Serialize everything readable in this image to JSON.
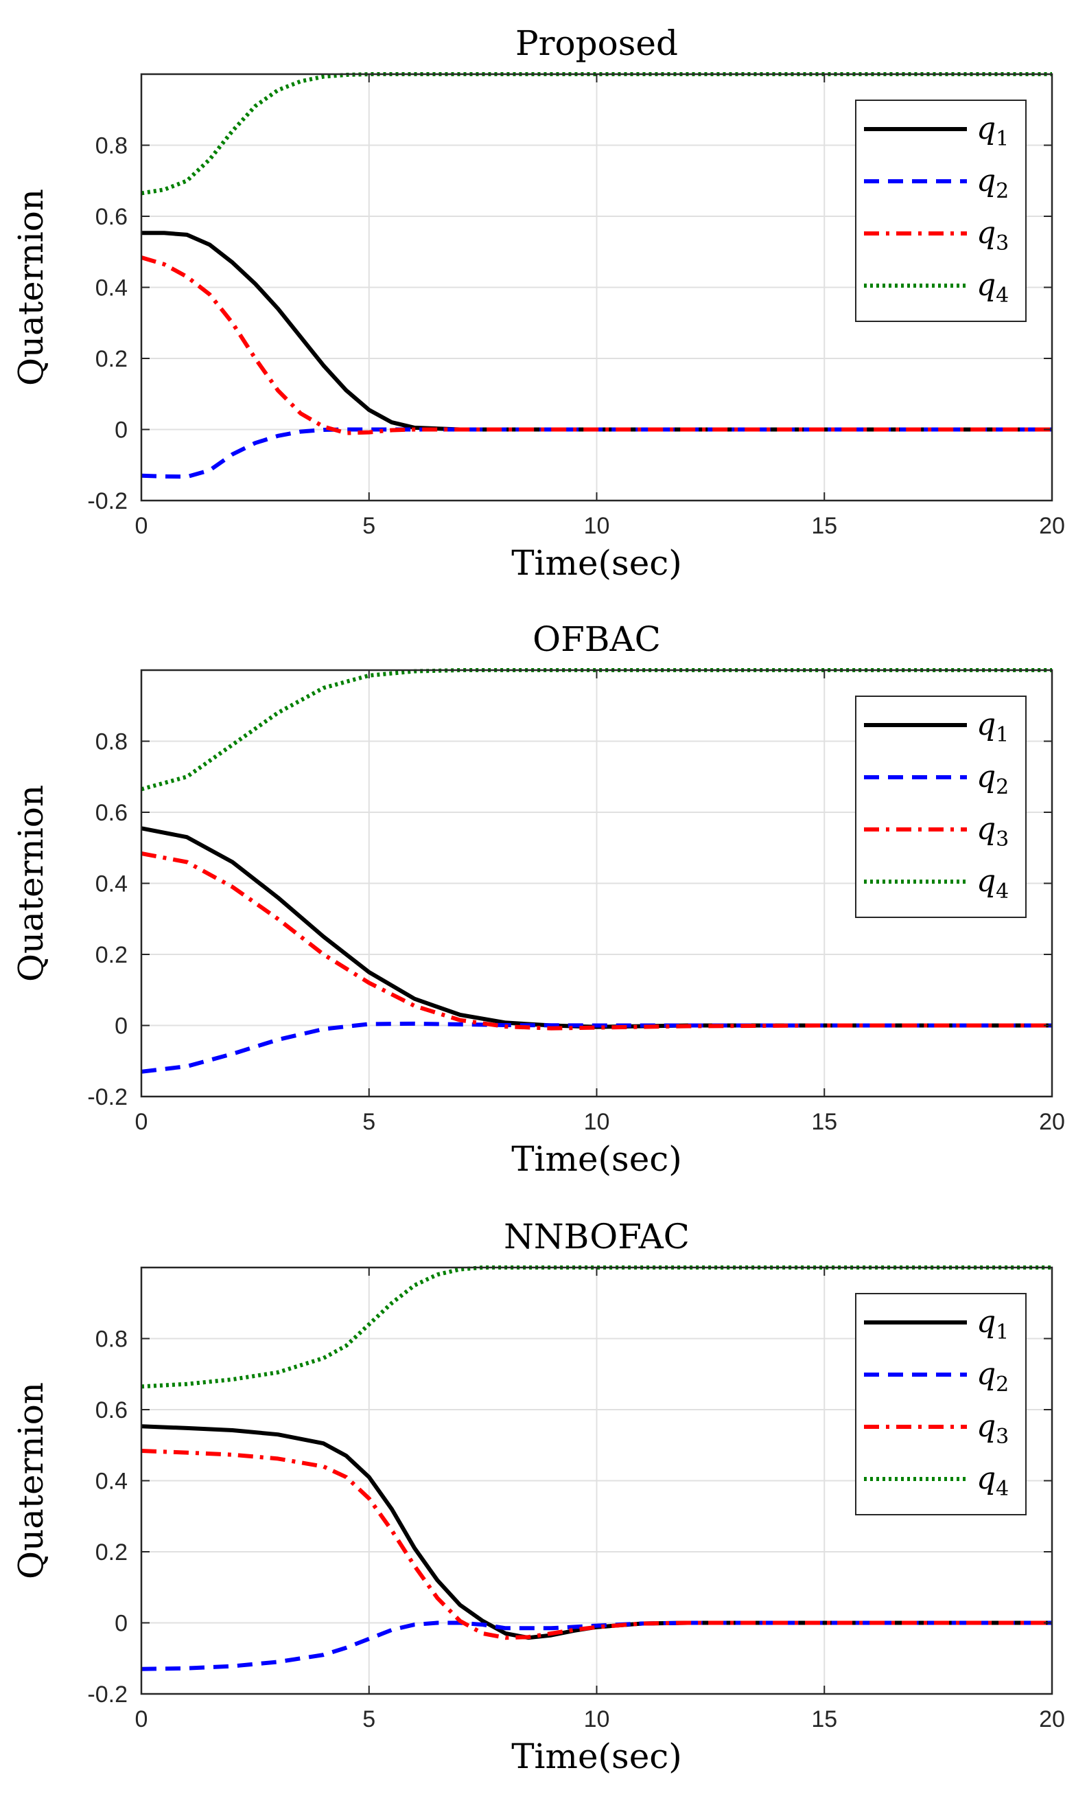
{
  "chart_data": [
    {
      "type": "line",
      "title": "Proposed",
      "xlabel": "Time(sec)",
      "ylabel": "Quaternion",
      "xlim": [
        0,
        20
      ],
      "ylim": [
        -0.2,
        1.0
      ],
      "xticks": [
        "0",
        "5",
        "10",
        "15",
        "20"
      ],
      "yticks": [
        "-0.2",
        "0",
        "0.2",
        "0.4",
        "0.6",
        "0.8"
      ],
      "grid": true,
      "legend_position": "top-right",
      "series": [
        {
          "name": "q",
          "sub": "1",
          "color": "#000000",
          "style": "solid",
          "x": [
            0,
            0.5,
            1,
            1.5,
            2,
            2.5,
            3,
            3.5,
            4,
            4.5,
            5,
            5.5,
            6,
            7,
            8,
            10,
            15,
            20
          ],
          "y": [
            0.553,
            0.553,
            0.548,
            0.52,
            0.47,
            0.41,
            0.34,
            0.26,
            0.18,
            0.11,
            0.055,
            0.02,
            0.005,
            0,
            0,
            0,
            0,
            0
          ]
        },
        {
          "name": "q",
          "sub": "2",
          "color": "#0000ff",
          "style": "dashed",
          "x": [
            0,
            0.5,
            1,
            1.5,
            2,
            2.5,
            3,
            3.5,
            4,
            4.5,
            5,
            6,
            8,
            10,
            15,
            20
          ],
          "y": [
            -0.13,
            -0.132,
            -0.133,
            -0.115,
            -0.07,
            -0.038,
            -0.018,
            -0.006,
            -0.001,
            0,
            0,
            0,
            0,
            0,
            0,
            0
          ]
        },
        {
          "name": "q",
          "sub": "3",
          "color": "#ff0000",
          "style": "dashdot",
          "x": [
            0,
            0.5,
            1,
            1.5,
            2,
            2.5,
            3,
            3.5,
            4,
            4.5,
            5,
            5.5,
            6,
            7,
            10,
            15,
            20
          ],
          "y": [
            0.484,
            0.465,
            0.43,
            0.38,
            0.3,
            0.2,
            0.11,
            0.045,
            0.008,
            -0.01,
            -0.008,
            -0.002,
            0,
            0,
            0,
            0,
            0
          ]
        },
        {
          "name": "q",
          "sub": "4",
          "color": "#008000",
          "style": "dotted",
          "x": [
            0,
            0.5,
            1,
            1.5,
            2,
            2.5,
            3,
            3.5,
            4,
            4.5,
            5,
            6,
            8,
            10,
            15,
            20
          ],
          "y": [
            0.665,
            0.675,
            0.7,
            0.76,
            0.84,
            0.91,
            0.955,
            0.98,
            0.993,
            0.998,
            1.0,
            1.0,
            1.0,
            1.0,
            1.0,
            1.0
          ]
        }
      ]
    },
    {
      "type": "line",
      "title": "OFBAC",
      "xlabel": "Time(sec)",
      "ylabel": "Quaternion",
      "xlim": [
        0,
        20
      ],
      "ylim": [
        -0.2,
        1.0
      ],
      "xticks": [
        "0",
        "5",
        "10",
        "15",
        "20"
      ],
      "yticks": [
        "-0.2",
        "0",
        "0.2",
        "0.4",
        "0.6",
        "0.8"
      ],
      "grid": true,
      "legend_position": "top-right",
      "series": [
        {
          "name": "q",
          "sub": "1",
          "color": "#000000",
          "style": "solid",
          "x": [
            0,
            1,
            2,
            3,
            4,
            5,
            6,
            7,
            8,
            9,
            10,
            12,
            15,
            20
          ],
          "y": [
            0.555,
            0.53,
            0.46,
            0.36,
            0.25,
            0.15,
            0.075,
            0.03,
            0.008,
            0,
            -0.004,
            0,
            0,
            0
          ]
        },
        {
          "name": "q",
          "sub": "2",
          "color": "#0000ff",
          "style": "dashed",
          "x": [
            0,
            1,
            2,
            3,
            4,
            5,
            6,
            7,
            8,
            10,
            12,
            15,
            20
          ],
          "y": [
            -0.13,
            -0.115,
            -0.08,
            -0.04,
            -0.01,
            0.004,
            0.005,
            0.003,
            0.001,
            0,
            0,
            0,
            0
          ]
        },
        {
          "name": "q",
          "sub": "3",
          "color": "#ff0000",
          "style": "dashdot",
          "x": [
            0,
            1,
            2,
            3,
            4,
            5,
            6,
            7,
            8,
            9,
            10,
            12,
            15,
            20
          ],
          "y": [
            0.484,
            0.46,
            0.39,
            0.3,
            0.2,
            0.12,
            0.055,
            0.015,
            -0.003,
            -0.008,
            -0.006,
            -0.002,
            0,
            0
          ]
        },
        {
          "name": "q",
          "sub": "4",
          "color": "#008000",
          "style": "dotted",
          "x": [
            0,
            1,
            2,
            3,
            4,
            5,
            6,
            7,
            8,
            10,
            15,
            20
          ],
          "y": [
            0.665,
            0.7,
            0.79,
            0.88,
            0.95,
            0.985,
            0.997,
            1.0,
            1.0,
            1.0,
            1.0,
            1.0
          ]
        }
      ]
    },
    {
      "type": "line",
      "title": "NNBOFAC",
      "xlabel": "Time(sec)",
      "ylabel": "Quaternion",
      "xlim": [
        0,
        20
      ],
      "ylim": [
        -0.2,
        1.0
      ],
      "xticks": [
        "0",
        "5",
        "10",
        "15",
        "20"
      ],
      "yticks": [
        "-0.2",
        "0",
        "0.2",
        "0.4",
        "0.6",
        "0.8"
      ],
      "grid": true,
      "legend_position": "top-right",
      "series": [
        {
          "name": "q",
          "sub": "1",
          "color": "#000000",
          "style": "solid",
          "x": [
            0,
            1,
            2,
            3,
            4,
            4.5,
            5,
            5.5,
            6,
            6.5,
            7,
            7.5,
            8,
            8.5,
            9,
            9.5,
            10,
            11,
            12,
            15,
            20
          ],
          "y": [
            0.553,
            0.548,
            0.542,
            0.53,
            0.505,
            0.47,
            0.41,
            0.32,
            0.21,
            0.12,
            0.05,
            0.005,
            -0.03,
            -0.042,
            -0.035,
            -0.022,
            -0.012,
            -0.002,
            0,
            0,
            0
          ]
        },
        {
          "name": "q",
          "sub": "2",
          "color": "#0000ff",
          "style": "dashed",
          "x": [
            0,
            1,
            2,
            3,
            4,
            4.5,
            5,
            5.5,
            6,
            6.5,
            7,
            7.5,
            8,
            9,
            10,
            11,
            12,
            15,
            20
          ],
          "y": [
            -0.13,
            -0.128,
            -0.122,
            -0.11,
            -0.09,
            -0.07,
            -0.045,
            -0.02,
            -0.005,
            0,
            0,
            -0.005,
            -0.015,
            -0.015,
            -0.008,
            -0.002,
            0,
            0,
            0
          ]
        },
        {
          "name": "q",
          "sub": "3",
          "color": "#ff0000",
          "style": "dashdot",
          "x": [
            0,
            1,
            2,
            3,
            4,
            4.5,
            5,
            5.5,
            6,
            6.5,
            7,
            7.5,
            8,
            8.5,
            9,
            9.5,
            10,
            11,
            12,
            15,
            20
          ],
          "y": [
            0.484,
            0.479,
            0.473,
            0.462,
            0.44,
            0.41,
            0.35,
            0.26,
            0.16,
            0.07,
            0.005,
            -0.03,
            -0.042,
            -0.04,
            -0.03,
            -0.02,
            -0.012,
            -0.002,
            0,
            0,
            0
          ]
        },
        {
          "name": "q",
          "sub": "4",
          "color": "#008000",
          "style": "dotted",
          "x": [
            0,
            1,
            2,
            3,
            4,
            4.5,
            5,
            5.5,
            6,
            6.5,
            7,
            7.5,
            8,
            10,
            15,
            20
          ],
          "y": [
            0.665,
            0.672,
            0.685,
            0.705,
            0.745,
            0.78,
            0.84,
            0.9,
            0.95,
            0.98,
            0.995,
            1.0,
            1.0,
            1.0,
            1.0,
            1.0
          ]
        }
      ]
    }
  ]
}
